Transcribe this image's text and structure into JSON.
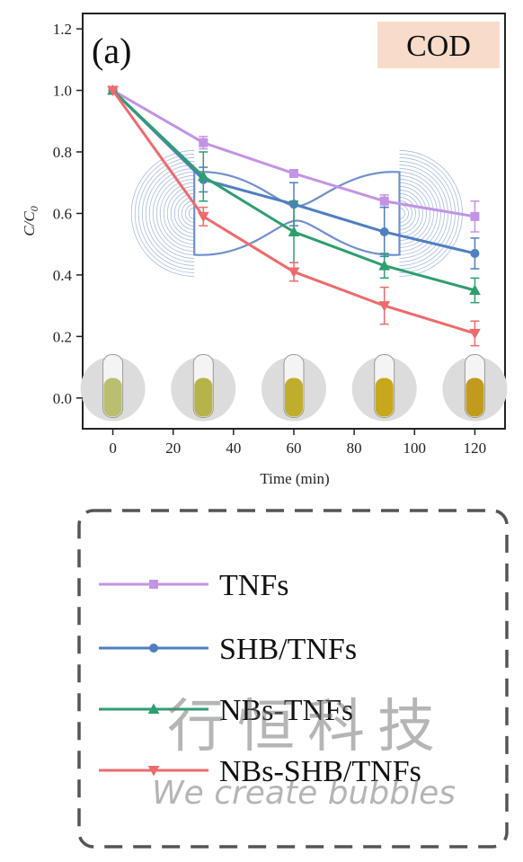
{
  "chart_data": {
    "type": "line",
    "panel_label": "(a)",
    "badge": "COD",
    "xlabel": "Time (min)",
    "ylabel": "C/C0",
    "xlim": [
      -10,
      130
    ],
    "ylim": [
      -0.1,
      1.25
    ],
    "xticks": [
      0,
      20,
      40,
      60,
      80,
      100,
      120
    ],
    "yticks": [
      0.0,
      0.2,
      0.4,
      0.6,
      0.8,
      1.0,
      1.2
    ],
    "xtick_labels": [
      "0",
      "20",
      "40",
      "60",
      "80",
      "100",
      "120"
    ],
    "ytick_labels": [
      "0.0",
      "0.2",
      "0.4",
      "0.6",
      "0.8",
      "1.0",
      "1.2"
    ],
    "x": [
      0,
      30,
      60,
      90,
      120
    ],
    "series": [
      {
        "name": "TNFs",
        "color": "#c393e6",
        "marker": "square",
        "values": [
          1.0,
          0.83,
          0.73,
          0.64,
          0.59
        ],
        "errors": [
          0,
          0.02,
          0.01,
          0.02,
          0.05
        ]
      },
      {
        "name": "SHB/TNFs",
        "color": "#4f7fc2",
        "marker": "circle",
        "values": [
          1.0,
          0.71,
          0.63,
          0.54,
          0.47
        ],
        "errors": [
          0,
          0.04,
          0.07,
          0.08,
          0.05
        ]
      },
      {
        "name": "NBs-TNFs",
        "color": "#2f9e6f",
        "marker": "triangle-up",
        "values": [
          1.0,
          0.72,
          0.54,
          0.43,
          0.35
        ],
        "errors": [
          0,
          0.08,
          0.1,
          0.04,
          0.04
        ]
      },
      {
        "name": "NBs-SHB/TNFs",
        "color": "#ee6b6b",
        "marker": "triangle-down",
        "values": [
          1.0,
          0.59,
          0.41,
          0.3,
          0.21
        ],
        "errors": [
          0,
          0.03,
          0.03,
          0.06,
          0.04
        ]
      }
    ],
    "sample_tube_colors": [
      "#b9bf6e",
      "#b5b34a",
      "#bfae2e",
      "#c7a81c",
      "#c09b1c"
    ],
    "grid": false,
    "legend_position": "below-chart"
  },
  "watermark": {
    "chinese": "行恒科技",
    "english": "We create bubbles"
  }
}
